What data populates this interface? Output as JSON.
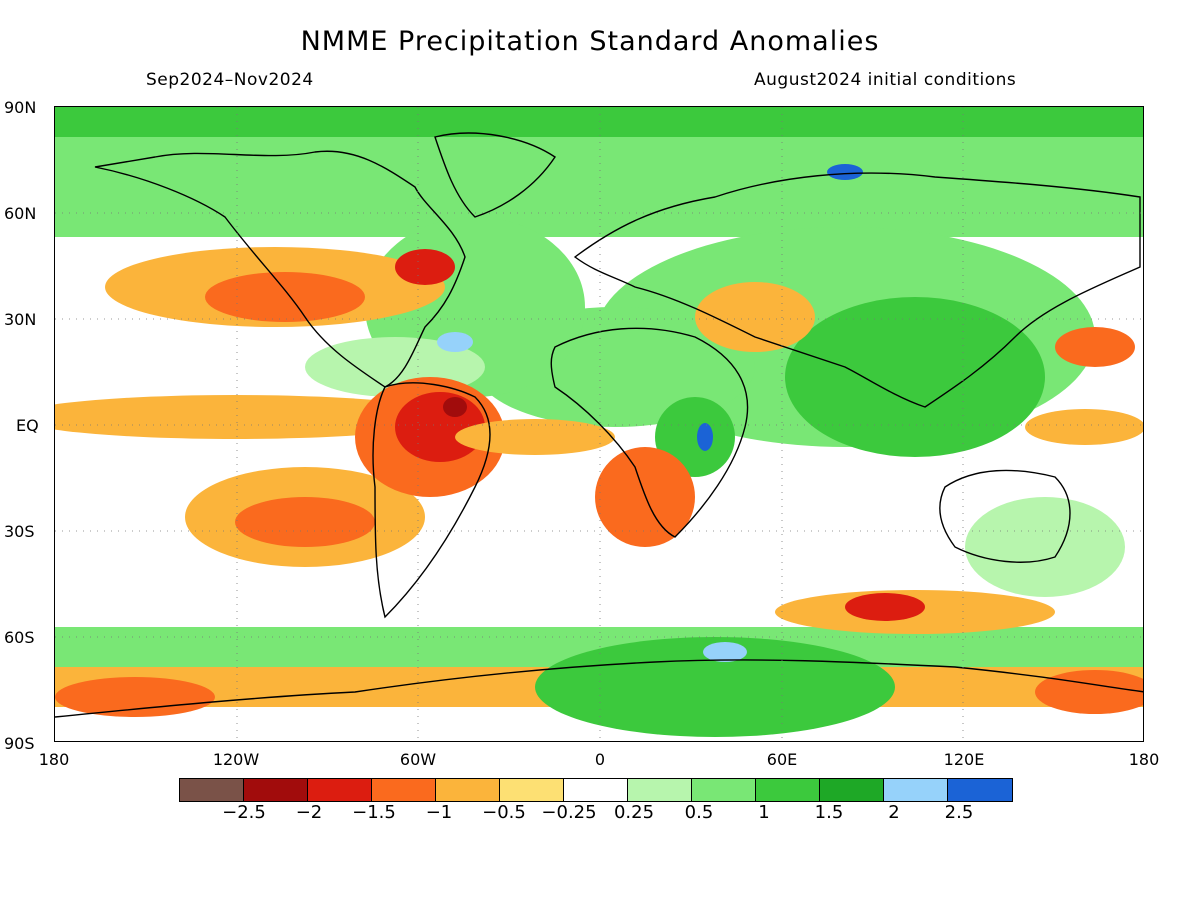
{
  "title": "NMME Precipitation Standard Anomalies",
  "period": "Sep2024–Nov2024",
  "initial_conditions": "August2024 initial conditions",
  "lat_labels": [
    "90N",
    "60N",
    "30N",
    "EQ",
    "30S",
    "60S",
    "90S"
  ],
  "lon_labels": [
    "180",
    "120W",
    "60W",
    "0",
    "60E",
    "120E",
    "180"
  ],
  "colorbar": {
    "colors": [
      "#7a5248",
      "#a10c0c",
      "#dc1d10",
      "#fa6a1e",
      "#fbb43b",
      "#fde073",
      "#ffffff",
      "#b7f5ad",
      "#79e775",
      "#3cc93d",
      "#1ea826",
      "#96d2fa",
      "#1b63d6"
    ],
    "labels": [
      "−2.5",
      "−2",
      "−1.5",
      "−1",
      "−0.5",
      "−0.25",
      "0.25",
      "0.5",
      "1",
      "1.5",
      "2",
      "2.5"
    ]
  }
}
